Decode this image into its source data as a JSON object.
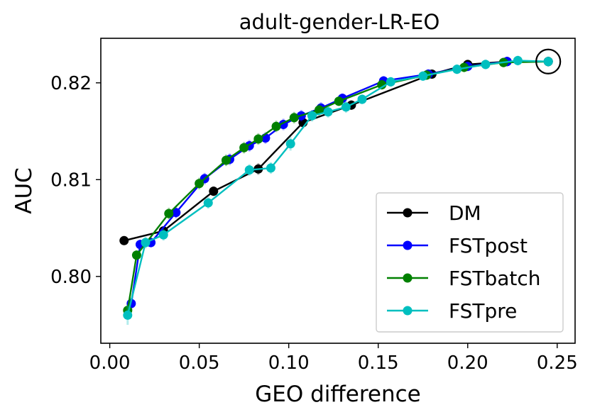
{
  "chart_data": {
    "type": "line",
    "title": "adult-gender-LR-EO",
    "xlabel": "GEO difference",
    "ylabel": "AUC",
    "xlim": [
      -0.005,
      0.26
    ],
    "ylim": [
      0.7931,
      0.8246
    ],
    "xticks": [
      0.0,
      0.05,
      0.1,
      0.15,
      0.2,
      0.25
    ],
    "xtick_labels": [
      "0.00",
      "0.05",
      "0.10",
      "0.15",
      "0.20",
      "0.25"
    ],
    "yticks": [
      0.8,
      0.81,
      0.82
    ],
    "ytick_labels": [
      "0.80",
      "0.81",
      "0.82"
    ],
    "grid": false,
    "legend_position": "lower-right",
    "annotation": {
      "type": "circle",
      "x": 0.245,
      "y": 0.8222
    },
    "series": [
      {
        "name": "DM",
        "color": "#000000",
        "x": [
          0.008,
          0.03,
          0.058,
          0.083,
          0.108,
          0.135,
          0.18,
          0.2,
          0.222,
          0.245
        ],
        "y": [
          0.8037,
          0.8047,
          0.8088,
          0.8111,
          0.8159,
          0.8177,
          0.8209,
          0.8219,
          0.8222,
          0.8222
        ],
        "err": [
          0.0004,
          0.0004,
          0.0005,
          0.0006,
          0.0006,
          0.0005,
          0.0004,
          0.0004,
          0.0004,
          0.0004
        ]
      },
      {
        "name": "FSTpost",
        "color": "#0000ff",
        "x": [
          0.012,
          0.017,
          0.023,
          0.037,
          0.053,
          0.067,
          0.078,
          0.087,
          0.097,
          0.107,
          0.118,
          0.13,
          0.153,
          0.178,
          0.2,
          0.222,
          0.245
        ],
        "y": [
          0.7972,
          0.8033,
          0.8035,
          0.8066,
          0.8101,
          0.8121,
          0.8135,
          0.8143,
          0.8157,
          0.8166,
          0.8174,
          0.8184,
          0.8202,
          0.8209,
          0.8217,
          0.8222,
          0.8222
        ],
        "err": [
          0.0006,
          0.0005,
          0.0005,
          0.0006,
          0.0006,
          0.0006,
          0.0006,
          0.0006,
          0.0006,
          0.0006,
          0.0006,
          0.0005,
          0.0005,
          0.0005,
          0.0005,
          0.0005,
          0.0005
        ]
      },
      {
        "name": "FSTbatch",
        "color": "#008000",
        "x": [
          0.01,
          0.015,
          0.033,
          0.05,
          0.065,
          0.075,
          0.083,
          0.093,
          0.103,
          0.117,
          0.128,
          0.152,
          0.177,
          0.198,
          0.22,
          0.245
        ],
        "y": [
          0.7965,
          0.8022,
          0.8065,
          0.8096,
          0.812,
          0.8133,
          0.8142,
          0.8155,
          0.8164,
          0.8172,
          0.8181,
          0.8198,
          0.8208,
          0.8216,
          0.8221,
          0.8222
        ],
        "err": [
          0.0006,
          0.0005,
          0.0006,
          0.0006,
          0.0006,
          0.0006,
          0.0006,
          0.0006,
          0.0006,
          0.0006,
          0.0005,
          0.0005,
          0.0005,
          0.0005,
          0.0005,
          0.0005
        ]
      },
      {
        "name": "FSTpre",
        "color": "#00bfbf",
        "x": [
          0.01,
          0.02,
          0.03,
          0.055,
          0.078,
          0.09,
          0.101,
          0.113,
          0.122,
          0.132,
          0.141,
          0.157,
          0.175,
          0.194,
          0.21,
          0.228,
          0.245
        ],
        "y": [
          0.796,
          0.8035,
          0.8043,
          0.8076,
          0.811,
          0.8112,
          0.8137,
          0.8166,
          0.817,
          0.8175,
          0.8183,
          0.8201,
          0.8207,
          0.8214,
          0.8219,
          0.8223,
          0.8222
        ],
        "err": [
          0.001,
          0.0006,
          0.0006,
          0.0006,
          0.0006,
          0.0006,
          0.0007,
          0.0006,
          0.0006,
          0.0006,
          0.0005,
          0.0005,
          0.0005,
          0.0005,
          0.0005,
          0.0005,
          0.0005
        ]
      }
    ]
  }
}
